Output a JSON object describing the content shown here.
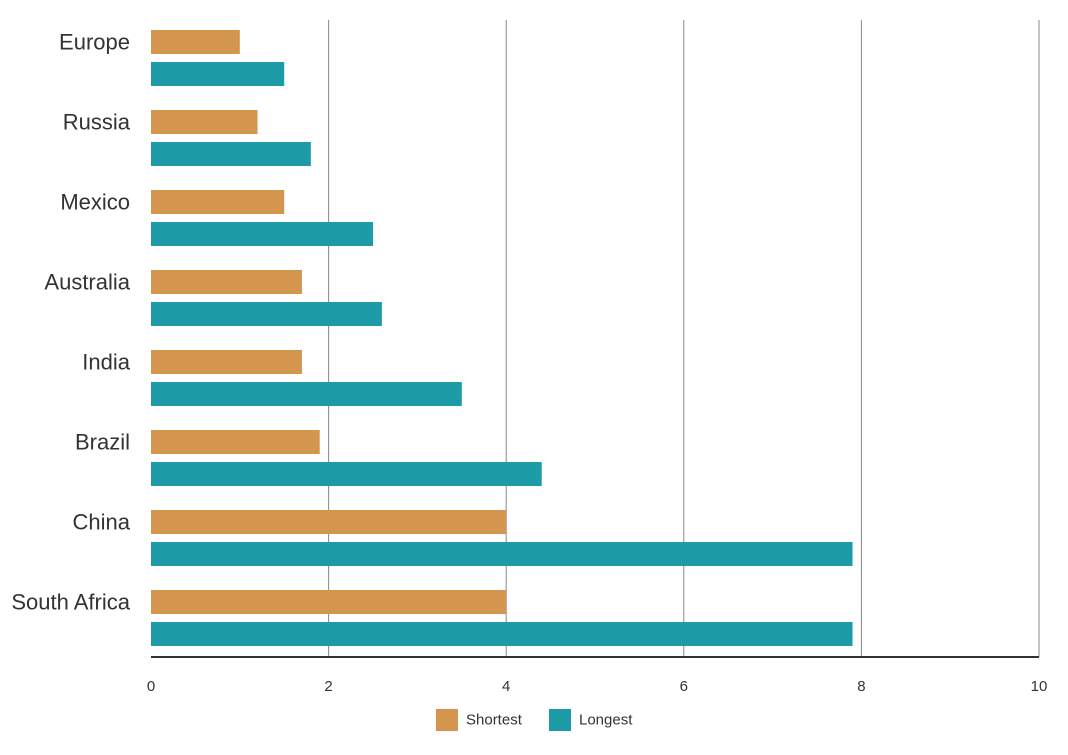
{
  "chart_data": {
    "type": "bar",
    "orientation": "horizontal",
    "categories": [
      "Europe",
      "Russia",
      "Mexico",
      "Australia",
      "India",
      "Brazil",
      "China",
      "South Africa"
    ],
    "series": [
      {
        "name": "Shortest",
        "color": "#D4954E",
        "values": [
          1.0,
          1.2,
          1.5,
          1.7,
          1.7,
          1.9,
          4.0,
          4.0
        ]
      },
      {
        "name": "Longest",
        "color": "#1D9BA6",
        "values": [
          1.5,
          1.8,
          2.5,
          2.6,
          3.5,
          4.4,
          7.9,
          7.9
        ]
      }
    ],
    "xlim": [
      0,
      10
    ],
    "xticks": [
      0,
      2,
      4,
      6,
      8,
      10
    ],
    "title": "",
    "xlabel": "",
    "ylabel": "",
    "grid": "vertical",
    "legend": "bottom-center"
  }
}
